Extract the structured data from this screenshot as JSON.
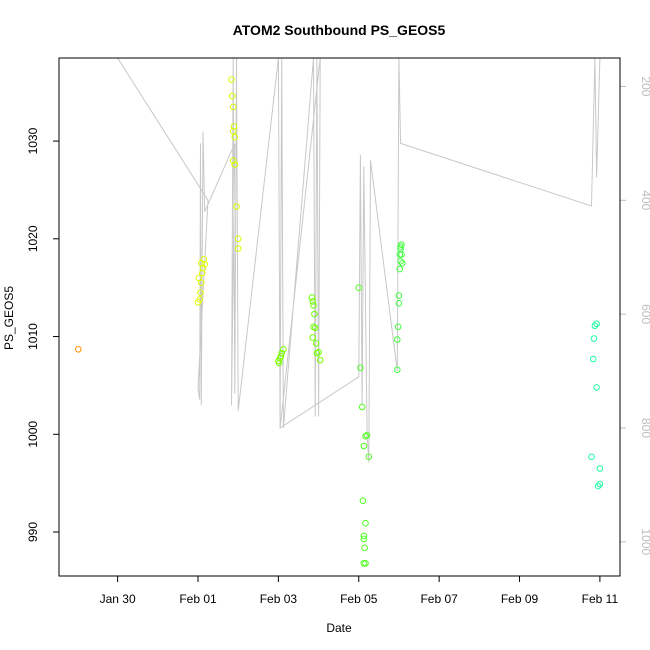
{
  "chart_data": {
    "type": "scatter",
    "title": "ATOM2 Southbound PS_GEOS5",
    "xlabel": "Date",
    "ylabel": "PS_GEOS5",
    "x_ticks": [
      "Jan 30",
      "Feb 01",
      "Feb 03",
      "Feb 05",
      "Feb 07",
      "Feb 09",
      "Feb 11"
    ],
    "y_ticks": [
      990,
      1000,
      1010,
      1020,
      1030
    ],
    "right_axis_ticks": [
      200,
      400,
      600,
      800,
      1000
    ],
    "xlim": [
      "2016-01-28T13:00",
      "2016-02-11T12:00"
    ],
    "ylim": [
      985.5,
      1038.5
    ],
    "right_axis_lim": [
      1060,
      150
    ],
    "right_axis_color": "#bdbdbd",
    "grid": false,
    "points": [
      {
        "x": "2016-01-29T00:30",
        "y": 1008.7,
        "color": "#ff8c00"
      },
      {
        "x": "2016-02-01T00:00",
        "y": 1013.5,
        "color": "#e0ff00"
      },
      {
        "x": "2016-02-01T01:00",
        "y": 1013.8,
        "color": "#e0ff00"
      },
      {
        "x": "2016-02-01T01:30",
        "y": 1014.5,
        "color": "#e0ff00"
      },
      {
        "x": "2016-02-01T02:00",
        "y": 1015.5,
        "color": "#e0ff00"
      },
      {
        "x": "2016-02-01T00:30",
        "y": 1016.0,
        "color": "#e0ff00"
      },
      {
        "x": "2016-02-01T02:30",
        "y": 1016.5,
        "color": "#e0ff00"
      },
      {
        "x": "2016-02-01T03:00",
        "y": 1017.0,
        "color": "#e0ff00"
      },
      {
        "x": "2016-02-01T02:00",
        "y": 1017.5,
        "color": "#e0ff00"
      },
      {
        "x": "2016-02-01T03:30",
        "y": 1017.9,
        "color": "#e0ff00"
      },
      {
        "x": "2016-02-01T04:00",
        "y": 1017.4,
        "color": "#e0ff00"
      },
      {
        "x": "2016-02-01T20:00",
        "y": 1036.3,
        "color": "#d8ff00"
      },
      {
        "x": "2016-02-01T20:30",
        "y": 1034.6,
        "color": "#d8ff00"
      },
      {
        "x": "2016-02-01T21:00",
        "y": 1033.5,
        "color": "#d8ff00"
      },
      {
        "x": "2016-02-01T21:30",
        "y": 1031.5,
        "color": "#d8ff00"
      },
      {
        "x": "2016-02-01T21:00",
        "y": 1031.0,
        "color": "#d8ff00"
      },
      {
        "x": "2016-02-01T22:00",
        "y": 1030.4,
        "color": "#d8ff00"
      },
      {
        "x": "2016-02-01T21:00",
        "y": 1028.0,
        "color": "#d8ff00"
      },
      {
        "x": "2016-02-01T22:00",
        "y": 1027.6,
        "color": "#d8ff00"
      },
      {
        "x": "2016-02-01T23:00",
        "y": 1023.3,
        "color": "#d8ff00"
      },
      {
        "x": "2016-02-02T00:00",
        "y": 1020.0,
        "color": "#d8ff00"
      },
      {
        "x": "2016-02-02T00:00",
        "y": 1019.0,
        "color": "#d8ff00"
      },
      {
        "x": "2016-02-03T00:00",
        "y": 1007.5,
        "color": "#7cff00"
      },
      {
        "x": "2016-02-03T00:30",
        "y": 1007.3,
        "color": "#7cff00"
      },
      {
        "x": "2016-02-03T01:00",
        "y": 1007.8,
        "color": "#7cff00"
      },
      {
        "x": "2016-02-03T01:30",
        "y": 1008.0,
        "color": "#7cff00"
      },
      {
        "x": "2016-02-03T02:00",
        "y": 1008.3,
        "color": "#7cff00"
      },
      {
        "x": "2016-02-03T03:00",
        "y": 1008.7,
        "color": "#7cff00"
      },
      {
        "x": "2016-02-03T20:00",
        "y": 1014.0,
        "color": "#70ff00"
      },
      {
        "x": "2016-02-03T20:30",
        "y": 1013.6,
        "color": "#70ff00"
      },
      {
        "x": "2016-02-03T21:00",
        "y": 1013.2,
        "color": "#70ff00"
      },
      {
        "x": "2016-02-03T21:30",
        "y": 1012.3,
        "color": "#70ff00"
      },
      {
        "x": "2016-02-03T21:00",
        "y": 1011.0,
        "color": "#70ff00"
      },
      {
        "x": "2016-02-03T22:00",
        "y": 1010.9,
        "color": "#70ff00"
      },
      {
        "x": "2016-02-03T20:30",
        "y": 1009.9,
        "color": "#70ff00"
      },
      {
        "x": "2016-02-03T22:30",
        "y": 1009.3,
        "color": "#70ff00"
      },
      {
        "x": "2016-02-03T23:00",
        "y": 1008.3,
        "color": "#70ff00"
      },
      {
        "x": "2016-02-04T00:00",
        "y": 1008.4,
        "color": "#70ff00"
      },
      {
        "x": "2016-02-04T01:00",
        "y": 1007.6,
        "color": "#70ff00"
      },
      {
        "x": "2016-02-05T00:00",
        "y": 1015.0,
        "color": "#50ff20"
      },
      {
        "x": "2016-02-05T01:00",
        "y": 1006.8,
        "color": "#50ff20"
      },
      {
        "x": "2016-02-05T02:00",
        "y": 1002.8,
        "color": "#50ff20"
      },
      {
        "x": "2016-02-05T05:00",
        "y": 999.9,
        "color": "#50ff20"
      },
      {
        "x": "2016-02-05T04:00",
        "y": 999.8,
        "color": "#50ff20"
      },
      {
        "x": "2016-02-05T03:00",
        "y": 998.8,
        "color": "#50ff20"
      },
      {
        "x": "2016-02-05T06:00",
        "y": 997.7,
        "color": "#50ff20"
      },
      {
        "x": "2016-02-05T02:30",
        "y": 993.2,
        "color": "#50ff20"
      },
      {
        "x": "2016-02-05T04:00",
        "y": 990.9,
        "color": "#50ff20"
      },
      {
        "x": "2016-02-05T03:00",
        "y": 989.6,
        "color": "#50ff20"
      },
      {
        "x": "2016-02-05T03:00",
        "y": 989.3,
        "color": "#50ff20"
      },
      {
        "x": "2016-02-05T03:30",
        "y": 988.4,
        "color": "#50ff20"
      },
      {
        "x": "2016-02-05T03:00",
        "y": 986.8,
        "color": "#50ff20"
      },
      {
        "x": "2016-02-05T04:00",
        "y": 986.8,
        "color": "#50ff20"
      },
      {
        "x": "2016-02-05T23:00",
        "y": 1006.6,
        "color": "#40ff40"
      },
      {
        "x": "2016-02-05T23:00",
        "y": 1009.7,
        "color": "#40ff40"
      },
      {
        "x": "2016-02-05T23:30",
        "y": 1011.0,
        "color": "#40ff40"
      },
      {
        "x": "2016-02-06T00:00",
        "y": 1013.4,
        "color": "#40ff40"
      },
      {
        "x": "2016-02-06T00:00",
        "y": 1014.2,
        "color": "#40ff40"
      },
      {
        "x": "2016-02-06T00:30",
        "y": 1016.9,
        "color": "#40ff40"
      },
      {
        "x": "2016-02-06T01:00",
        "y": 1017.7,
        "color": "#40ff40"
      },
      {
        "x": "2016-02-06T02:00",
        "y": 1017.5,
        "color": "#40ff40"
      },
      {
        "x": "2016-02-06T00:30",
        "y": 1018.4,
        "color": "#40ff40"
      },
      {
        "x": "2016-02-06T01:30",
        "y": 1018.4,
        "color": "#40ff40"
      },
      {
        "x": "2016-02-06T01:00",
        "y": 1019.0,
        "color": "#40ff40"
      },
      {
        "x": "2016-02-06T01:00",
        "y": 1019.2,
        "color": "#40ff40"
      },
      {
        "x": "2016-02-06T01:30",
        "y": 1019.4,
        "color": "#40ff40"
      },
      {
        "x": "2016-02-10T20:00",
        "y": 1007.7,
        "color": "#20ffa0"
      },
      {
        "x": "2016-02-10T20:30",
        "y": 1009.8,
        "color": "#20ffa0"
      },
      {
        "x": "2016-02-10T21:00",
        "y": 1011.1,
        "color": "#20ffa0"
      },
      {
        "x": "2016-02-10T22:00",
        "y": 1011.3,
        "color": "#20ffa0"
      },
      {
        "x": "2016-02-10T22:00",
        "y": 1004.8,
        "color": "#20ffa0"
      },
      {
        "x": "2016-02-10T19:00",
        "y": 997.7,
        "color": "#20ffa0"
      },
      {
        "x": "2016-02-11T00:00",
        "y": 996.5,
        "color": "#20ffa0"
      },
      {
        "x": "2016-02-10T23:00",
        "y": 994.7,
        "color": "#20ffa0"
      },
      {
        "x": "2016-02-11T00:00",
        "y": 994.9,
        "color": "#20ffa0"
      }
    ],
    "altitude_line": {
      "color": "#c8c8c8",
      "note": "secondary series plotted against the right axis (reversed)",
      "x": [
        "2016-01-28T13:00",
        "2016-01-30T00:00",
        "2016-02-01T06:00",
        "2016-02-01T00:00",
        "2016-02-01T01:00",
        "2016-02-01T01:30",
        "2016-02-01T02:00",
        "2016-02-01T03:00",
        "2016-02-01T04:00",
        "2016-02-01T22:00",
        "2016-02-01T20:00",
        "2016-02-01T21:00",
        "2016-02-01T22:00",
        "2016-02-01T23:00",
        "2016-02-02T00:00",
        "2016-02-03T00:00",
        "2016-02-03T01:00",
        "2016-02-03T02:00",
        "2016-02-03T03:00",
        "2016-02-03T21:00",
        "2016-02-03T22:00",
        "2016-02-03T23:00",
        "2016-02-04T00:00",
        "2016-02-04T01:00",
        "2016-02-03T01:00",
        "2016-02-05T00:00",
        "2016-02-05T01:00",
        "2016-02-05T02:00",
        "2016-02-05T03:00",
        "2016-02-05T05:00",
        "2016-02-05T06:00",
        "2016-02-05T07:00",
        "2016-02-05T23:00",
        "2016-02-06T00:00",
        "2016-02-06T01:00",
        "2016-02-10T19:00",
        "2016-02-10T21:00",
        "2016-02-10T22:00",
        "2016-02-11T00:00"
      ],
      "y": [
        150,
        150,
        400,
        730,
        750,
        300,
        760,
        280,
        420,
        300,
        760,
        150,
        740,
        150,
        770,
        150,
        800,
        150,
        800,
        150,
        780,
        150,
        780,
        150,
        800,
        710,
        320,
        760,
        340,
        810,
        860,
        330,
        700,
        150,
        300,
        410,
        150,
        360,
        150
      ]
    }
  }
}
